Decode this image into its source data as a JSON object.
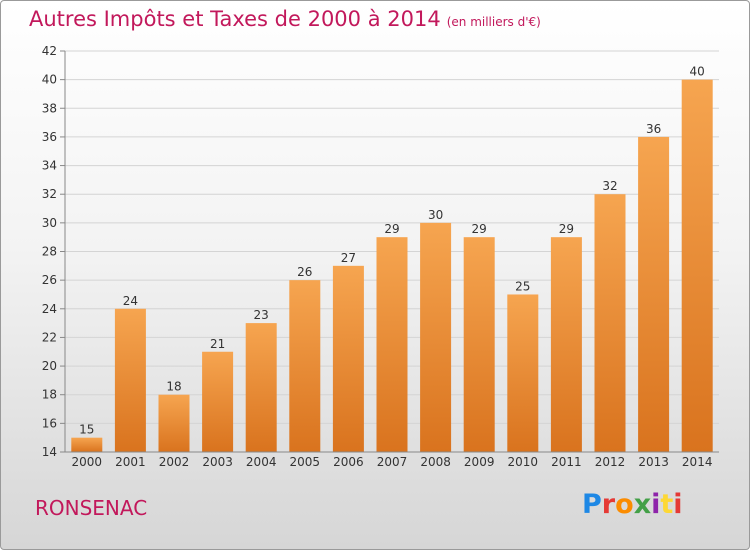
{
  "header": {
    "title": "Autres Impôts et Taxes de 2000 à 2014",
    "unit": "(en milliers d'€)"
  },
  "footer": {
    "commune": "RONSENAC",
    "logo": "Proxiti"
  },
  "colors": {
    "bar_top": "#f6a550",
    "bar_bottom": "#d9731e",
    "title": "#c2185b",
    "grid": "#d4d4d4"
  },
  "chart_data": {
    "type": "bar",
    "title": "Autres Impôts et Taxes de 2000 à 2014",
    "subtitle": "(en milliers d'€)",
    "xlabel": "",
    "ylabel": "",
    "categories": [
      "2000",
      "2001",
      "2002",
      "2003",
      "2004",
      "2005",
      "2006",
      "2007",
      "2008",
      "2009",
      "2010",
      "2011",
      "2012",
      "2013",
      "2014"
    ],
    "values": [
      15,
      24,
      18,
      21,
      23,
      26,
      27,
      29,
      30,
      29,
      25,
      29,
      32,
      36,
      40
    ],
    "ylim": [
      14,
      42
    ],
    "yticks": [
      14,
      16,
      18,
      20,
      22,
      24,
      26,
      28,
      30,
      32,
      34,
      36,
      38,
      40,
      42
    ],
    "grid": true,
    "legend": "none"
  }
}
